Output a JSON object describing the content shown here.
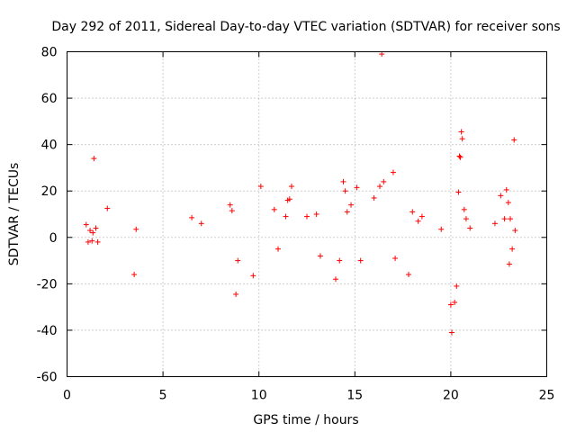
{
  "chart_data": {
    "type": "scatter",
    "title": "Day 292 of 2011, Sidereal Day-to-day VTEC variation (SDTVAR) for receiver sons",
    "xlabel": "GPS time / hours",
    "ylabel": "SDTVAR / TECUs",
    "xlim": [
      0,
      25
    ],
    "ylim": [
      -60,
      80
    ],
    "xticks": [
      0,
      5,
      10,
      15,
      20,
      25
    ],
    "yticks": [
      -60,
      -40,
      -20,
      0,
      20,
      40,
      60,
      80
    ],
    "grid": true,
    "marker": "+",
    "color": "#ff0000",
    "series": [
      {
        "name": "SDTVAR",
        "points": [
          [
            1.0,
            5.5
          ],
          [
            1.1,
            -2
          ],
          [
            1.2,
            3
          ],
          [
            1.3,
            -1.5
          ],
          [
            1.35,
            2
          ],
          [
            1.4,
            34
          ],
          [
            1.5,
            4
          ],
          [
            1.6,
            -2
          ],
          [
            2.1,
            12.5
          ],
          [
            3.5,
            -16
          ],
          [
            3.6,
            3.5
          ],
          [
            6.5,
            8.5
          ],
          [
            7.0,
            6
          ],
          [
            8.5,
            14
          ],
          [
            8.6,
            11.5
          ],
          [
            8.8,
            -24.5
          ],
          [
            8.9,
            -10
          ],
          [
            9.7,
            -16.5
          ],
          [
            10.1,
            22
          ],
          [
            10.8,
            12
          ],
          [
            11.0,
            -5
          ],
          [
            11.4,
            9
          ],
          [
            11.5,
            16
          ],
          [
            11.6,
            16.5
          ],
          [
            11.7,
            22
          ],
          [
            12.5,
            9
          ],
          [
            13.0,
            10
          ],
          [
            13.2,
            -8
          ],
          [
            14.0,
            -18
          ],
          [
            14.2,
            -10
          ],
          [
            14.4,
            24
          ],
          [
            14.5,
            20
          ],
          [
            14.6,
            11
          ],
          [
            14.8,
            14
          ],
          [
            15.1,
            21.5
          ],
          [
            15.3,
            -10
          ],
          [
            16.0,
            17
          ],
          [
            16.3,
            22
          ],
          [
            16.4,
            79
          ],
          [
            16.5,
            24
          ],
          [
            17.0,
            28
          ],
          [
            17.1,
            -9
          ],
          [
            17.8,
            -16
          ],
          [
            18.0,
            11
          ],
          [
            18.3,
            7
          ],
          [
            18.5,
            9
          ],
          [
            19.5,
            3.5
          ],
          [
            20.0,
            -29
          ],
          [
            20.05,
            -41
          ],
          [
            20.2,
            -28
          ],
          [
            20.3,
            -21
          ],
          [
            20.4,
            19.5
          ],
          [
            20.45,
            35
          ],
          [
            20.5,
            34.5
          ],
          [
            20.55,
            45.5
          ],
          [
            20.6,
            42.5
          ],
          [
            20.7,
            12
          ],
          [
            20.8,
            8
          ],
          [
            21.0,
            4
          ],
          [
            22.3,
            6
          ],
          [
            22.6,
            18
          ],
          [
            22.8,
            8
          ],
          [
            22.9,
            20.5
          ],
          [
            23.0,
            15
          ],
          [
            23.05,
            -11.5
          ],
          [
            23.1,
            8
          ],
          [
            23.2,
            -5
          ],
          [
            23.3,
            42
          ],
          [
            23.35,
            3
          ]
        ]
      }
    ]
  }
}
